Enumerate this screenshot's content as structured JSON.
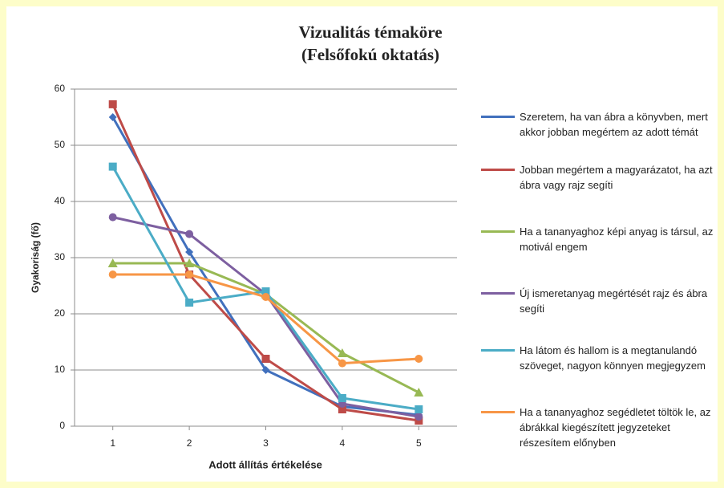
{
  "chart_data": {
    "type": "line",
    "title": "Vizualitás témaköre",
    "subtitle": "(Felsőfokú oktatás)",
    "x_label": "Adott állítás értékelése",
    "y_label": "Gyakoriság (fő)",
    "x": [
      1,
      2,
      3,
      4,
      5
    ],
    "xlim": [
      0.5,
      5.5
    ],
    "xticks": [
      1,
      2,
      3,
      4,
      5
    ],
    "ylim": [
      0,
      60
    ],
    "yticks": [
      0,
      10,
      20,
      30,
      40,
      50,
      60
    ],
    "grid": true,
    "legend": "right",
    "series": [
      {
        "name": "Szeretem, ha van ábra a könyvben, mert akkor jobban megértem az adott témát",
        "color": "#4170bd",
        "marker": "diamond",
        "values": [
          55,
          31,
          10,
          3.5,
          2
        ]
      },
      {
        "name": "Jobban megértem a magyarázatot, ha azt ábra vagy rajz segíti",
        "color": "#be4b48",
        "marker": "square",
        "values": [
          57.3,
          27,
          12,
          3,
          1
        ]
      },
      {
        "name": "Ha a tananyaghoz képi anyag is társul, az motivál engem",
        "color": "#98b954",
        "marker": "triangle",
        "values": [
          29,
          29,
          23.5,
          13,
          6
        ]
      },
      {
        "name": "Új ismeretanyag megértését rajz és ábra segíti",
        "color": "#7d5fa0",
        "marker": "circle",
        "values": [
          37.2,
          34.2,
          23.5,
          4,
          1.7
        ]
      },
      {
        "name": "Ha látom és hallom is a megtanulandó szöveget, nagyon könnyen megjegyzem",
        "color": "#4bacc6",
        "marker": "square",
        "values": [
          46.2,
          22,
          24,
          5,
          3
        ]
      },
      {
        "name": "Ha a tananyaghoz segédletet töltök le, az ábrákkal kiegészített jegyzeteket részesítem előnyben",
        "color": "#f79646",
        "marker": "circle",
        "values": [
          27,
          27,
          23,
          11.2,
          12
        ]
      }
    ]
  }
}
